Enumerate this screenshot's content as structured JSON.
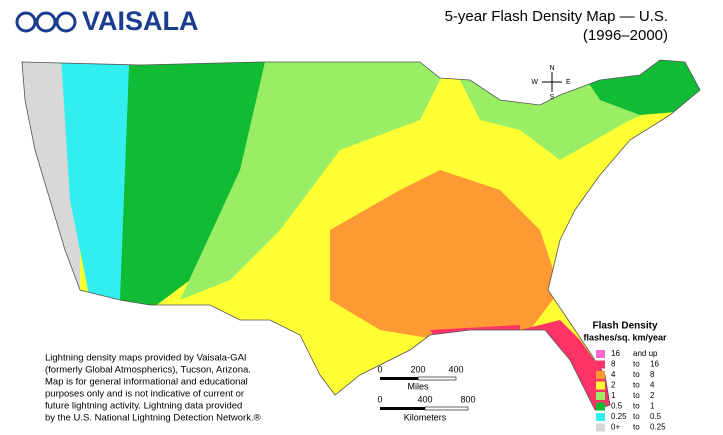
{
  "logo": "VAISALA",
  "title": {
    "line1": "5-year Flash Density Map — U.S.",
    "line2": "(1996–2000)"
  },
  "compass": {
    "n": "N",
    "s": "S",
    "e": "E",
    "w": "W"
  },
  "scale": {
    "miles": {
      "ticks": [
        "0",
        "200",
        "400"
      ],
      "unit": "Miles"
    },
    "km": {
      "ticks": [
        "0",
        "400",
        "800"
      ],
      "unit": "Kilometers"
    }
  },
  "legend": {
    "title": "Flash Density",
    "subtitle": "flashes/sq. km/year",
    "items": [
      {
        "color": "#ff66cc",
        "low": "16",
        "sep": "and up",
        "high": ""
      },
      {
        "color": "#ff3366",
        "low": "8",
        "sep": "to",
        "high": "16"
      },
      {
        "color": "#ff9933",
        "low": "4",
        "sep": "to",
        "high": "8"
      },
      {
        "color": "#ffff33",
        "low": "2",
        "sep": "to",
        "high": "4"
      },
      {
        "color": "#99ee66",
        "low": "1",
        "sep": "to",
        "high": "2"
      },
      {
        "color": "#11bb33",
        "low": "0.5",
        "sep": "to",
        "high": "1"
      },
      {
        "color": "#33eeee",
        "low": "0.25",
        "sep": "to",
        "high": "0.5"
      },
      {
        "color": "#d8d8d8",
        "low": "0+",
        "sep": "to",
        "high": "0.25"
      }
    ]
  },
  "credit": [
    "Lightning density maps provided by Vaisala-GAI",
    "(formerly Global Atmospherics), Tucson, Arizona.",
    "Map is for general informational and educational",
    "purposes only and is not indicative of current or",
    "future lightning activity. Lightning data provided",
    "by the U.S. National Lightning Detection Network.®"
  ]
}
